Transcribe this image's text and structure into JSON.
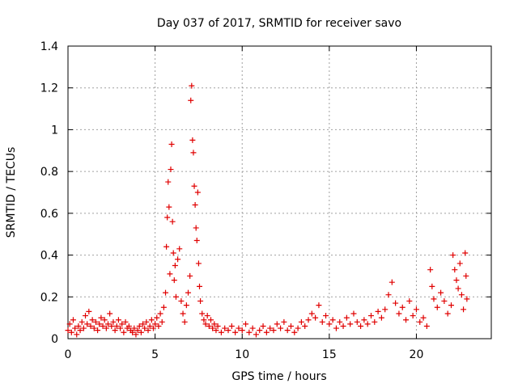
{
  "chart_data": {
    "type": "scatter",
    "title": "Day 037 of 2017, SRMTID for receiver savo",
    "xlabel": "GPS time / hours",
    "ylabel": "SRMTID / TECUs",
    "xlim": [
      0,
      24.3
    ],
    "ylim": [
      0,
      1.4
    ],
    "x_ticks": [
      0,
      5,
      10,
      15,
      20
    ],
    "x_tick_labels": [
      "0",
      "5",
      "10",
      "15",
      "20"
    ],
    "y_ticks": [
      0,
      0.2,
      0.4,
      0.6,
      0.8,
      1.0,
      1.2,
      1.4
    ],
    "y_tick_labels": [
      "0",
      "0.2",
      "0.4",
      "0.6",
      "0.8",
      "1",
      "1.2",
      "1.4"
    ],
    "grid": true,
    "marker": "+",
    "color": "#e00000",
    "series": [
      {
        "name": "SRMTID",
        "points": [
          [
            0.0,
            0.04
          ],
          [
            0.1,
            0.07
          ],
          [
            0.2,
            0.03
          ],
          [
            0.3,
            0.09
          ],
          [
            0.4,
            0.05
          ],
          [
            0.5,
            0.02
          ],
          [
            0.6,
            0.06
          ],
          [
            0.7,
            0.04
          ],
          [
            0.8,
            0.08
          ],
          [
            0.9,
            0.05
          ],
          [
            1.0,
            0.11
          ],
          [
            1.1,
            0.07
          ],
          [
            1.2,
            0.13
          ],
          [
            1.3,
            0.06
          ],
          [
            1.4,
            0.09
          ],
          [
            1.5,
            0.05
          ],
          [
            1.6,
            0.08
          ],
          [
            1.7,
            0.04
          ],
          [
            1.8,
            0.07
          ],
          [
            1.9,
            0.1
          ],
          [
            2.0,
            0.06
          ],
          [
            2.1,
            0.09
          ],
          [
            2.2,
            0.05
          ],
          [
            2.3,
            0.07
          ],
          [
            2.4,
            0.12
          ],
          [
            2.5,
            0.06
          ],
          [
            2.6,
            0.08
          ],
          [
            2.7,
            0.04
          ],
          [
            2.8,
            0.06
          ],
          [
            2.9,
            0.09
          ],
          [
            3.0,
            0.05
          ],
          [
            3.1,
            0.07
          ],
          [
            3.2,
            0.03
          ],
          [
            3.3,
            0.08
          ],
          [
            3.4,
            0.05
          ],
          [
            3.5,
            0.06
          ],
          [
            3.6,
            0.04
          ],
          [
            3.7,
            0.03
          ],
          [
            3.8,
            0.05
          ],
          [
            3.9,
            0.02
          ],
          [
            4.0,
            0.04
          ],
          [
            4.1,
            0.06
          ],
          [
            4.2,
            0.03
          ],
          [
            4.3,
            0.07
          ],
          [
            4.4,
            0.05
          ],
          [
            4.5,
            0.08
          ],
          [
            4.6,
            0.04
          ],
          [
            4.7,
            0.06
          ],
          [
            4.8,
            0.09
          ],
          [
            4.9,
            0.05
          ],
          [
            5.0,
            0.07
          ],
          [
            5.1,
            0.1
          ],
          [
            5.2,
            0.06
          ],
          [
            5.3,
            0.12
          ],
          [
            5.4,
            0.08
          ],
          [
            5.5,
            0.15
          ],
          [
            5.6,
            0.22
          ],
          [
            5.65,
            0.44
          ],
          [
            5.7,
            0.58
          ],
          [
            5.75,
            0.75
          ],
          [
            5.8,
            0.63
          ],
          [
            5.85,
            0.31
          ],
          [
            5.9,
            0.81
          ],
          [
            5.95,
            0.93
          ],
          [
            6.0,
            0.56
          ],
          [
            6.05,
            0.41
          ],
          [
            6.1,
            0.28
          ],
          [
            6.15,
            0.35
          ],
          [
            6.2,
            0.2
          ],
          [
            6.3,
            0.38
          ],
          [
            6.4,
            0.43
          ],
          [
            6.5,
            0.18
          ],
          [
            6.6,
            0.12
          ],
          [
            6.7,
            0.08
          ],
          [
            6.8,
            0.16
          ],
          [
            6.9,
            0.22
          ],
          [
            7.0,
            0.3
          ],
          [
            7.05,
            1.14
          ],
          [
            7.1,
            1.21
          ],
          [
            7.15,
            0.95
          ],
          [
            7.2,
            0.89
          ],
          [
            7.25,
            0.73
          ],
          [
            7.3,
            0.64
          ],
          [
            7.35,
            0.53
          ],
          [
            7.4,
            0.47
          ],
          [
            7.45,
            0.7
          ],
          [
            7.5,
            0.36
          ],
          [
            7.55,
            0.25
          ],
          [
            7.6,
            0.18
          ],
          [
            7.7,
            0.12
          ],
          [
            7.8,
            0.09
          ],
          [
            7.9,
            0.07
          ],
          [
            8.0,
            0.11
          ],
          [
            8.1,
            0.06
          ],
          [
            8.2,
            0.09
          ],
          [
            8.3,
            0.05
          ],
          [
            8.4,
            0.07
          ],
          [
            8.5,
            0.04
          ],
          [
            8.6,
            0.06
          ],
          [
            8.8,
            0.03
          ],
          [
            9.0,
            0.05
          ],
          [
            9.2,
            0.04
          ],
          [
            9.4,
            0.06
          ],
          [
            9.6,
            0.03
          ],
          [
            9.8,
            0.05
          ],
          [
            10.0,
            0.04
          ],
          [
            10.2,
            0.07
          ],
          [
            10.4,
            0.03
          ],
          [
            10.6,
            0.05
          ],
          [
            10.8,
            0.02
          ],
          [
            11.0,
            0.04
          ],
          [
            11.2,
            0.06
          ],
          [
            11.4,
            0.03
          ],
          [
            11.6,
            0.05
          ],
          [
            11.8,
            0.04
          ],
          [
            12.0,
            0.07
          ],
          [
            12.2,
            0.05
          ],
          [
            12.4,
            0.08
          ],
          [
            12.6,
            0.04
          ],
          [
            12.8,
            0.06
          ],
          [
            13.0,
            0.03
          ],
          [
            13.2,
            0.05
          ],
          [
            13.4,
            0.08
          ],
          [
            13.6,
            0.06
          ],
          [
            13.8,
            0.09
          ],
          [
            14.0,
            0.12
          ],
          [
            14.2,
            0.1
          ],
          [
            14.4,
            0.16
          ],
          [
            14.6,
            0.08
          ],
          [
            14.8,
            0.11
          ],
          [
            15.0,
            0.07
          ],
          [
            15.2,
            0.09
          ],
          [
            15.4,
            0.05
          ],
          [
            15.6,
            0.08
          ],
          [
            15.8,
            0.06
          ],
          [
            16.0,
            0.1
          ],
          [
            16.2,
            0.07
          ],
          [
            16.4,
            0.12
          ],
          [
            16.6,
            0.08
          ],
          [
            16.8,
            0.06
          ],
          [
            17.0,
            0.09
          ],
          [
            17.2,
            0.07
          ],
          [
            17.4,
            0.11
          ],
          [
            17.6,
            0.08
          ],
          [
            17.8,
            0.13
          ],
          [
            18.0,
            0.1
          ],
          [
            18.2,
            0.14
          ],
          [
            18.4,
            0.21
          ],
          [
            18.6,
            0.27
          ],
          [
            18.8,
            0.17
          ],
          [
            19.0,
            0.12
          ],
          [
            19.2,
            0.15
          ],
          [
            19.4,
            0.09
          ],
          [
            19.6,
            0.18
          ],
          [
            19.8,
            0.11
          ],
          [
            20.0,
            0.14
          ],
          [
            20.2,
            0.08
          ],
          [
            20.4,
            0.1
          ],
          [
            20.6,
            0.06
          ],
          [
            20.8,
            0.33
          ],
          [
            20.9,
            0.25
          ],
          [
            21.0,
            0.19
          ],
          [
            21.2,
            0.15
          ],
          [
            21.4,
            0.22
          ],
          [
            21.6,
            0.18
          ],
          [
            21.8,
            0.12
          ],
          [
            22.0,
            0.16
          ],
          [
            22.1,
            0.4
          ],
          [
            22.2,
            0.33
          ],
          [
            22.3,
            0.28
          ],
          [
            22.4,
            0.24
          ],
          [
            22.5,
            0.36
          ],
          [
            22.6,
            0.21
          ],
          [
            22.7,
            0.14
          ],
          [
            22.8,
            0.41
          ],
          [
            22.85,
            0.3
          ],
          [
            22.9,
            0.19
          ]
        ]
      }
    ]
  }
}
